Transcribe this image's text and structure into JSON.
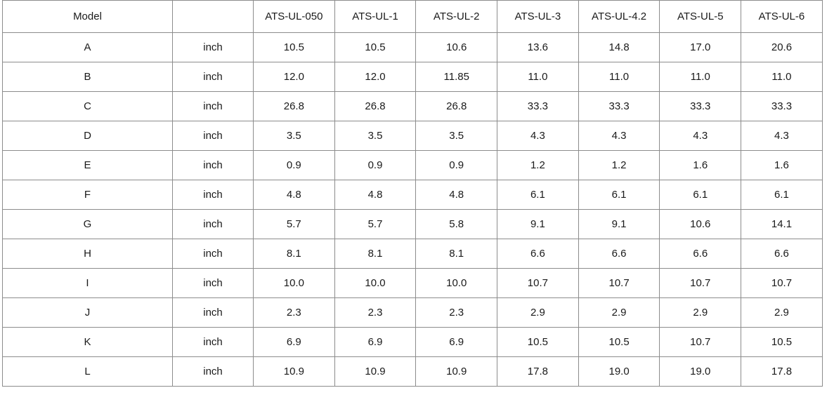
{
  "table": {
    "header": {
      "model_label": "Model",
      "unit_label": "",
      "models": [
        "ATS-UL-050",
        "ATS-UL-1",
        "ATS-UL-2",
        "ATS-UL-3",
        "ATS-UL-4.2",
        "ATS-UL-5",
        "ATS-UL-6"
      ]
    },
    "rows": [
      {
        "dim": "A",
        "unit": "inch",
        "values": [
          "10.5",
          "10.5",
          "10.6",
          "13.6",
          "14.8",
          "17.0",
          "20.6"
        ]
      },
      {
        "dim": "B",
        "unit": "inch",
        "values": [
          "12.0",
          "12.0",
          "11.85",
          "11.0",
          "11.0",
          "11.0",
          "11.0"
        ]
      },
      {
        "dim": "C",
        "unit": "inch",
        "values": [
          "26.8",
          "26.8",
          "26.8",
          "33.3",
          "33.3",
          "33.3",
          "33.3"
        ]
      },
      {
        "dim": "D",
        "unit": "inch",
        "values": [
          "3.5",
          "3.5",
          "3.5",
          "4.3",
          "4.3",
          "4.3",
          "4.3"
        ]
      },
      {
        "dim": "E",
        "unit": "inch",
        "values": [
          "0.9",
          "0.9",
          "0.9",
          "1.2",
          "1.2",
          "1.6",
          "1.6"
        ]
      },
      {
        "dim": "F",
        "unit": "inch",
        "values": [
          "4.8",
          "4.8",
          "4.8",
          "6.1",
          "6.1",
          "6.1",
          "6.1"
        ]
      },
      {
        "dim": "G",
        "unit": "inch",
        "values": [
          "5.7",
          "5.7",
          "5.8",
          "9.1",
          "9.1",
          "10.6",
          "14.1"
        ]
      },
      {
        "dim": "H",
        "unit": "inch",
        "values": [
          "8.1",
          "8.1",
          "8.1",
          "6.6",
          "6.6",
          "6.6",
          "6.6"
        ]
      },
      {
        "dim": "I",
        "unit": "inch",
        "values": [
          "10.0",
          "10.0",
          "10.0",
          "10.7",
          "10.7",
          "10.7",
          "10.7"
        ]
      },
      {
        "dim": "J",
        "unit": "inch",
        "values": [
          "2.3",
          "2.3",
          "2.3",
          "2.9",
          "2.9",
          "2.9",
          "2.9"
        ]
      },
      {
        "dim": "K",
        "unit": "inch",
        "values": [
          "6.9",
          "6.9",
          "6.9",
          "10.5",
          "10.5",
          "10.7",
          "10.5"
        ]
      },
      {
        "dim": "L",
        "unit": "inch",
        "values": [
          "10.9",
          "10.9",
          "10.9",
          "17.8",
          "19.0",
          "19.0",
          "17.8"
        ]
      }
    ]
  }
}
